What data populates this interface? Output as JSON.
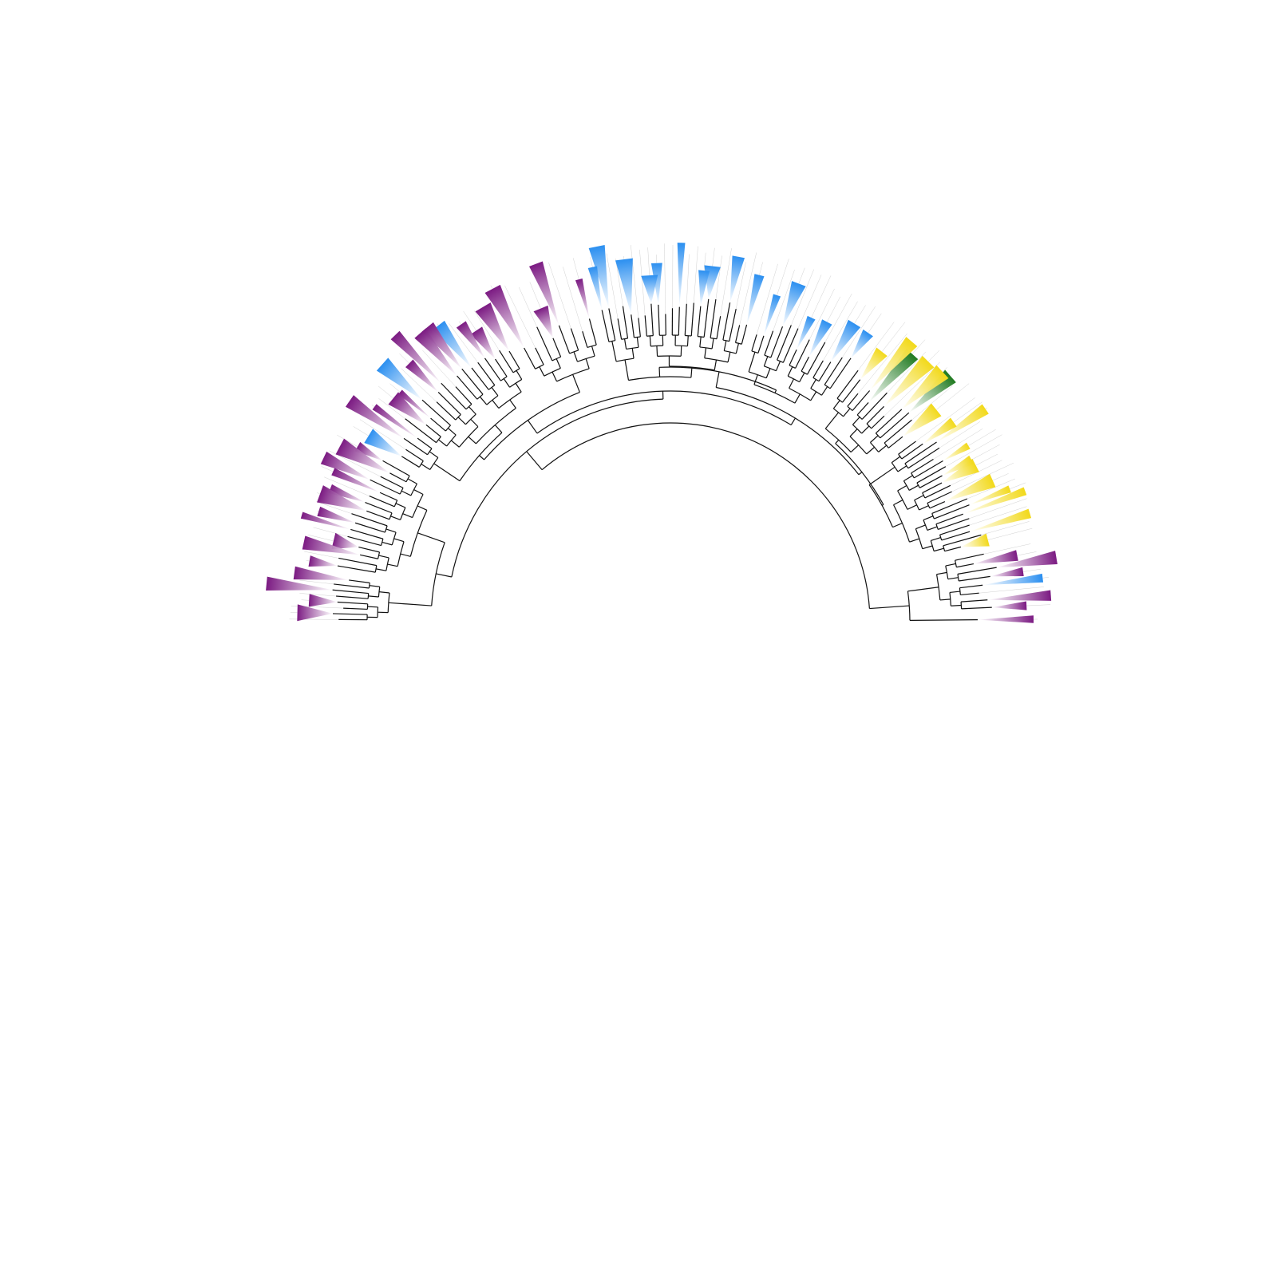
{
  "figure": {
    "description_type": "circular phylogenetic tree (semicircular fan)",
    "clade_colors": {
      "purple": "#7b1a82",
      "blue": "#2b8ff0",
      "yellow": "#f2d91a",
      "green": "#1f7a1f"
    },
    "gradient_end": "#ffffff",
    "branch_color": "#111111",
    "corner_label": ""
  }
}
